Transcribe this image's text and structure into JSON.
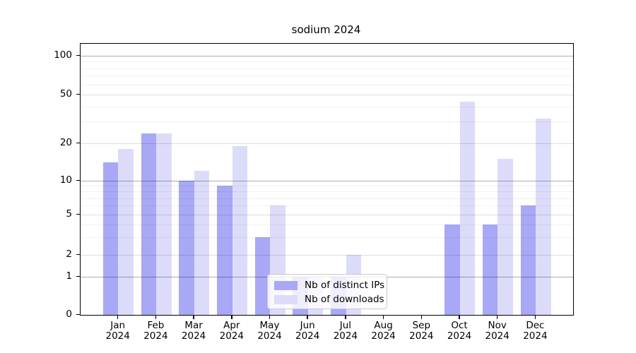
{
  "chart_data": {
    "type": "bar",
    "title": "sodium 2024",
    "xlabel": "",
    "ylabel": "",
    "categories": [
      "Jan 2024",
      "Feb 2024",
      "Mar 2024",
      "Apr 2024",
      "May 2024",
      "Jun 2024",
      "Jul 2024",
      "Aug 2024",
      "Sep 2024",
      "Oct 2024",
      "Nov 2024",
      "Dec 2024"
    ],
    "series": [
      {
        "name": "Nb of distinct IPs",
        "color": "#a8a8f6",
        "values": [
          14,
          24,
          10,
          9,
          3,
          1,
          1,
          0,
          0,
          4,
          4,
          6
        ]
      },
      {
        "name": "Nb of downloads",
        "color": "#dcdcfa",
        "values": [
          18,
          24,
          12,
          19,
          6,
          1,
          2,
          0,
          0,
          44,
          15,
          32
        ]
      }
    ],
    "yscale": "log-like",
    "yticks": [
      0,
      1,
      2,
      5,
      10,
      20,
      50,
      100
    ],
    "ylim": [
      0,
      125
    ],
    "grid": true,
    "legend_position": "lower center"
  }
}
